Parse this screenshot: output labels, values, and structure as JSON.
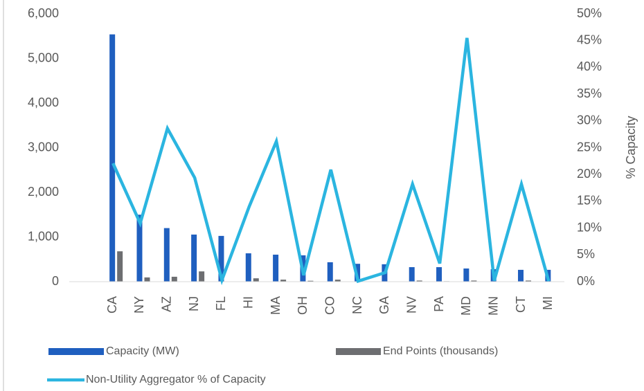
{
  "chart_data": {
    "type": "bar",
    "categories": [
      "CA",
      "NY",
      "AZ",
      "NJ",
      "FL",
      "HI",
      "MA",
      "OH",
      "CO",
      "NC",
      "GA",
      "NV",
      "PA",
      "MD",
      "MN",
      "CT",
      "MI"
    ],
    "series": [
      {
        "name": "Capacity (MW)",
        "type": "bar",
        "color": "#1f5fbf",
        "values": [
          5540,
          1500,
          1200,
          1055,
          1025,
          635,
          605,
          590,
          435,
          400,
          390,
          325,
          325,
          295,
          280,
          265,
          265
        ]
      },
      {
        "name": "End Points (thousands)",
        "type": "bar",
        "color": "#6d6e71",
        "values": [
          680,
          95,
          110,
          230,
          5,
          75,
          45,
          20,
          45,
          5,
          5,
          25,
          10,
          25,
          5,
          25,
          5
        ]
      },
      {
        "name": "Non-Utility Aggregator % of Capacity",
        "type": "line",
        "axis": "y2",
        "color": "#2bb5e0",
        "values": [
          22.1,
          10.9,
          28.6,
          19.4,
          0.3,
          14,
          26.2,
          1.2,
          20.9,
          0.1,
          1.7,
          18.2,
          3.4,
          45.5,
          0.2,
          18.2,
          0.1
        ]
      }
    ],
    "ylim": [
      0,
      6000
    ],
    "yticks": [
      0,
      {
        "value": 1000,
        "label": "1,000"
      },
      {
        "value": 2000,
        "label": "2,000"
      },
      {
        "value": 3000,
        "label": "3,000"
      },
      {
        "value": 4000,
        "label": "4,000"
      },
      {
        "value": 5000,
        "label": "5,000"
      },
      {
        "value": 6000,
        "label": "6,000"
      }
    ],
    "y2lim": [
      0,
      50
    ],
    "y2ticks": [
      {
        "value": 0,
        "label": "0%"
      },
      {
        "value": 5,
        "label": "5%"
      },
      {
        "value": 10,
        "label": "10%"
      },
      {
        "value": 15,
        "label": "15%"
      },
      {
        "value": 20,
        "label": "20%"
      },
      {
        "value": 25,
        "label": "25%"
      },
      {
        "value": 30,
        "label": "30%"
      },
      {
        "value": 35,
        "label": "35%"
      },
      {
        "value": 40,
        "label": "40%"
      },
      {
        "value": 45,
        "label": "45%"
      },
      {
        "value": 50,
        "label": "50%"
      }
    ],
    "y2_label": "% Capacity",
    "legend": "bottom"
  }
}
